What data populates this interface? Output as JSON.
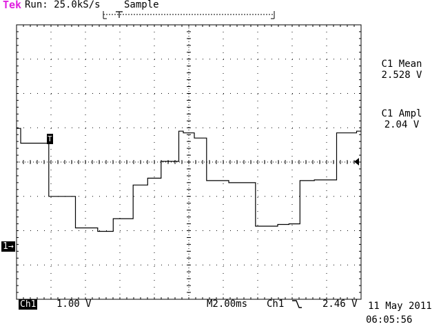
{
  "header": {
    "brand": "Tek",
    "run_status": "Run: 25.0kS/s",
    "acquire_mode": "Sample"
  },
  "measurements": [
    {
      "label": "C1 Mean",
      "value": "2.528 V"
    },
    {
      "label": "C1 Ampl",
      "value": "2.04 V"
    }
  ],
  "footer": {
    "channel": "Ch1",
    "volts_per_div": "1.00 V",
    "timebase": "M2.00ms",
    "trigger_source": "Ch1",
    "trigger_slope_icon": "falling-edge-icon",
    "trigger_level": "2.46 V",
    "date": "11 May 2011",
    "time": "06:05:56"
  },
  "markers": {
    "ground": "1→",
    "trigger": "T"
  },
  "colors": {
    "brand": "#e020e0",
    "trace": "#000000",
    "grid": "#000000"
  },
  "chart_data": {
    "type": "line",
    "title": "",
    "xlabel": "",
    "ylabel": "",
    "x_unit": "ms",
    "y_unit": "V",
    "xlim": [
      0,
      20
    ],
    "ylim": [
      -1,
      7
    ],
    "grid": true,
    "series": [
      {
        "x": [
          0.0,
          0.24,
          0.24,
          1.4,
          1.4,
          1.87,
          1.87,
          3.42,
          3.42,
          4.71,
          4.71,
          5.61,
          5.61,
          6.77,
          6.77,
          7.61,
          7.61,
          8.39,
          8.39,
          9.42,
          9.42,
          9.68,
          9.68,
          10.32,
          10.32,
          11.03,
          11.03,
          12.32,
          12.32,
          13.87,
          13.87,
          15.16,
          15.16,
          15.81,
          15.81,
          16.45,
          16.45,
          17.29,
          17.29,
          18.58,
          18.58,
          19.74,
          19.74,
          20.0
        ],
        "y": [
          3.98,
          3.98,
          3.55,
          3.55,
          3.55,
          3.55,
          2.0,
          2.0,
          1.08,
          1.08,
          0.98,
          0.98,
          1.35,
          1.35,
          2.33,
          2.33,
          2.53,
          2.53,
          3.02,
          3.02,
          3.9,
          3.9,
          3.85,
          3.85,
          3.7,
          3.7,
          2.46,
          2.46,
          2.4,
          2.4,
          1.13,
          1.13,
          1.18,
          1.18,
          1.2,
          1.2,
          2.46,
          2.46,
          2.48,
          2.48,
          3.85,
          3.85,
          3.9,
          3.9
        ]
      }
    ]
  }
}
